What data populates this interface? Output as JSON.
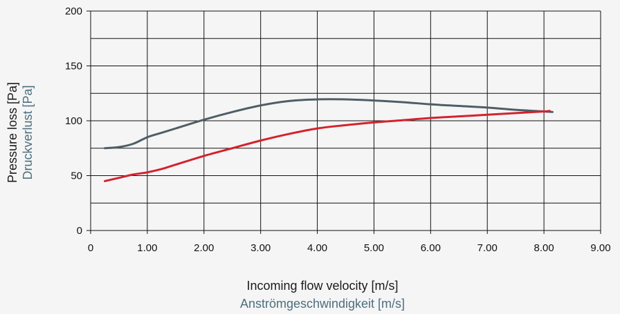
{
  "chart_data": {
    "type": "line",
    "xlabel": "Incoming flow velocity [m/s]",
    "xlabel_alt": "Anströmgeschwindigkeit [m/s]",
    "ylabel": "Pressure loss [Pa]",
    "ylabel_alt": "Druckverlust [Pa]",
    "xlim": [
      0,
      9
    ],
    "ylim": [
      0,
      200
    ],
    "x_ticks": [
      0,
      1,
      2,
      3,
      4,
      5,
      6,
      7,
      8,
      9
    ],
    "x_tick_labels": [
      "0",
      "1.00",
      "2.00",
      "3.00",
      "4.00",
      "5.00",
      "6.00",
      "7.00",
      "8.00",
      "9.00"
    ],
    "y_ticks": [
      0,
      50,
      100,
      150,
      200
    ],
    "y_tick_labels": [
      "0",
      "50",
      "100",
      "150",
      "200"
    ],
    "grid": true,
    "grid_y_step": 25,
    "legend": "none",
    "series": [
      {
        "color": "#4f5d66",
        "points": [
          [
            0.25,
            75
          ],
          [
            0.5,
            76
          ],
          [
            0.75,
            79
          ],
          [
            1.0,
            85
          ],
          [
            1.25,
            89
          ],
          [
            1.5,
            93
          ],
          [
            2.0,
            101
          ],
          [
            2.5,
            108
          ],
          [
            3.0,
            114
          ],
          [
            3.5,
            118
          ],
          [
            4.0,
            119.5
          ],
          [
            4.5,
            119.5
          ],
          [
            5.0,
            118.5
          ],
          [
            5.5,
            117
          ],
          [
            6.0,
            115
          ],
          [
            6.5,
            113.5
          ],
          [
            7.0,
            112
          ],
          [
            7.5,
            110
          ],
          [
            8.0,
            108.5
          ],
          [
            8.15,
            108
          ]
        ]
      },
      {
        "color": "#d4222c",
        "points": [
          [
            0.25,
            45
          ],
          [
            0.5,
            48
          ],
          [
            0.75,
            51
          ],
          [
            1.0,
            53
          ],
          [
            1.25,
            56
          ],
          [
            1.5,
            60
          ],
          [
            2.0,
            68
          ],
          [
            2.5,
            75
          ],
          [
            3.0,
            82
          ],
          [
            3.5,
            88
          ],
          [
            4.0,
            93
          ],
          [
            4.5,
            96
          ],
          [
            5.0,
            98.5
          ],
          [
            5.5,
            100.5
          ],
          [
            6.0,
            102.5
          ],
          [
            6.5,
            104
          ],
          [
            7.0,
            105.5
          ],
          [
            7.5,
            107
          ],
          [
            8.0,
            108.5
          ],
          [
            8.1,
            109
          ]
        ]
      }
    ],
    "alt_label_color": "#4d6e7e"
  }
}
